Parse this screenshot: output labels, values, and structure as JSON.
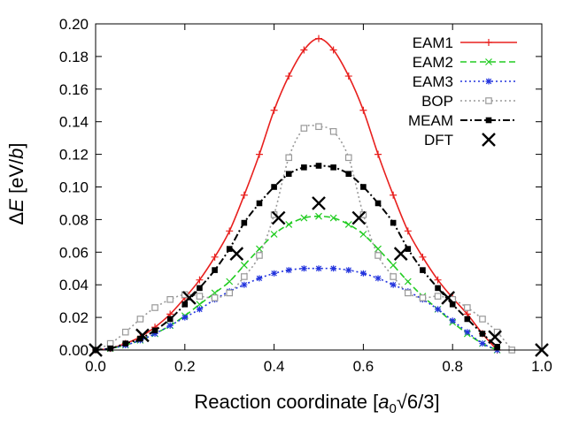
{
  "chart_data": {
    "type": "line",
    "title": "",
    "xlabel": {
      "pre": "Reaction coordinate [",
      "sym": "a",
      "sub": "0",
      "post": "√6/3]"
    },
    "ylabel": {
      "pre": "Δ",
      "e": "E",
      "mid": " [eV/",
      "b": "b",
      "post": "]"
    },
    "xlim": [
      0,
      1
    ],
    "ylim": [
      0,
      0.2
    ],
    "xticks": [
      "0.0",
      "0.2",
      "0.4",
      "0.6",
      "0.8",
      "1.0"
    ],
    "yticks": [
      "0.00",
      "0.02",
      "0.04",
      "0.06",
      "0.08",
      "0.10",
      "0.12",
      "0.14",
      "0.16",
      "0.18",
      "0.20"
    ],
    "legend_position": "top-right",
    "series": [
      {
        "name": "EAM1",
        "color": "#e8201e",
        "style": "solid",
        "marker": "plus",
        "x": [
          0,
          0.033,
          0.067,
          0.1,
          0.133,
          0.167,
          0.2,
          0.233,
          0.267,
          0.3,
          0.333,
          0.367,
          0.4,
          0.433,
          0.467,
          0.5,
          0.533,
          0.567,
          0.6,
          0.633,
          0.667,
          0.7,
          0.733,
          0.767,
          0.8,
          0.833,
          0.867,
          0.9
        ],
        "y": [
          0,
          0.001,
          0.004,
          0.008,
          0.014,
          0.022,
          0.032,
          0.043,
          0.057,
          0.073,
          0.095,
          0.12,
          0.147,
          0.168,
          0.184,
          0.191,
          0.184,
          0.168,
          0.147,
          0.12,
          0.095,
          0.073,
          0.057,
          0.043,
          0.032,
          0.022,
          0.01,
          0.0
        ]
      },
      {
        "name": "EAM2",
        "color": "#22cc22",
        "style": "dashed",
        "marker": "x",
        "x": [
          0,
          0.033,
          0.067,
          0.1,
          0.133,
          0.167,
          0.2,
          0.233,
          0.267,
          0.3,
          0.333,
          0.367,
          0.4,
          0.433,
          0.467,
          0.5,
          0.533,
          0.567,
          0.6,
          0.633,
          0.667,
          0.7,
          0.733,
          0.767,
          0.8,
          0.833,
          0.867,
          0.9
        ],
        "y": [
          0,
          0.001,
          0.003,
          0.006,
          0.01,
          0.015,
          0.021,
          0.028,
          0.035,
          0.042,
          0.052,
          0.062,
          0.071,
          0.077,
          0.081,
          0.082,
          0.081,
          0.077,
          0.071,
          0.062,
          0.052,
          0.042,
          0.033,
          0.025,
          0.017,
          0.01,
          0.004,
          0.0
        ]
      },
      {
        "name": "EAM3",
        "color": "#2233dd",
        "style": "dotted",
        "marker": "star",
        "x": [
          0,
          0.033,
          0.067,
          0.1,
          0.133,
          0.167,
          0.2,
          0.233,
          0.267,
          0.3,
          0.333,
          0.367,
          0.4,
          0.433,
          0.467,
          0.5,
          0.533,
          0.567,
          0.6,
          0.633,
          0.667,
          0.7,
          0.733,
          0.767,
          0.8,
          0.833,
          0.867,
          0.9
        ],
        "y": [
          0,
          0.001,
          0.003,
          0.006,
          0.01,
          0.015,
          0.02,
          0.025,
          0.031,
          0.036,
          0.04,
          0.044,
          0.047,
          0.049,
          0.05,
          0.05,
          0.05,
          0.049,
          0.047,
          0.044,
          0.04,
          0.036,
          0.031,
          0.025,
          0.018,
          0.011,
          0.004,
          0.0
        ]
      },
      {
        "name": "BOP",
        "color": "#999999",
        "style": "dotted",
        "marker": "square-open",
        "x": [
          0,
          0.033,
          0.067,
          0.1,
          0.133,
          0.167,
          0.2,
          0.233,
          0.267,
          0.3,
          0.333,
          0.367,
          0.4,
          0.433,
          0.467,
          0.5,
          0.533,
          0.567,
          0.6,
          0.633,
          0.667,
          0.7,
          0.733,
          0.767,
          0.8,
          0.833,
          0.867,
          0.9,
          0.933
        ],
        "y": [
          0,
          0.004,
          0.011,
          0.019,
          0.026,
          0.031,
          0.034,
          0.033,
          0.032,
          0.035,
          0.045,
          0.058,
          0.083,
          0.118,
          0.136,
          0.137,
          0.134,
          0.118,
          0.083,
          0.058,
          0.045,
          0.035,
          0.032,
          0.033,
          0.031,
          0.026,
          0.019,
          0.011,
          0.0
        ]
      },
      {
        "name": "MEAM",
        "color": "#000000",
        "style": "dashdot",
        "marker": "square-filled",
        "x": [
          0,
          0.033,
          0.067,
          0.1,
          0.133,
          0.167,
          0.2,
          0.233,
          0.267,
          0.3,
          0.333,
          0.367,
          0.4,
          0.433,
          0.467,
          0.5,
          0.533,
          0.567,
          0.6,
          0.633,
          0.667,
          0.7,
          0.733,
          0.767,
          0.8,
          0.833,
          0.867,
          0.9
        ],
        "y": [
          0,
          0.001,
          0.004,
          0.007,
          0.012,
          0.019,
          0.028,
          0.038,
          0.049,
          0.062,
          0.078,
          0.09,
          0.1,
          0.108,
          0.112,
          0.113,
          0.112,
          0.108,
          0.1,
          0.09,
          0.078,
          0.062,
          0.049,
          0.038,
          0.028,
          0.019,
          0.01,
          0.002
        ]
      },
      {
        "name": "DFT",
        "color": "#000000",
        "style": "none",
        "marker": "cross-big",
        "x": [
          0,
          0.105,
          0.21,
          0.316,
          0.41,
          0.5,
          0.59,
          0.684,
          0.79,
          0.895,
          1.0
        ],
        "y": [
          0,
          0.009,
          0.032,
          0.059,
          0.081,
          0.09,
          0.081,
          0.059,
          0.032,
          0.008,
          0.0
        ]
      }
    ]
  }
}
